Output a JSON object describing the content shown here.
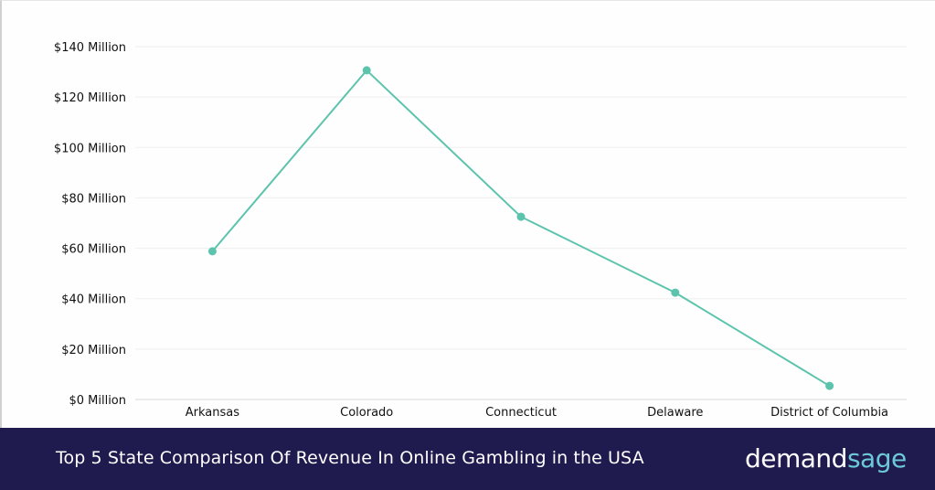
{
  "chart_data": {
    "type": "line",
    "title": "Top 5 State Comparison Of Revenue In Online Gambling in the USA",
    "categories": [
      "Arkansas",
      "Colorado",
      "Connecticut",
      "Delaware",
      "District of Columbia"
    ],
    "values": [
      58.8,
      130.6,
      72.5,
      42.4,
      5.4
    ],
    "y_unit": "Million USD",
    "ylim": [
      0,
      140
    ],
    "yticks": [
      0,
      20,
      40,
      60,
      80,
      100,
      120,
      140
    ],
    "ytick_labels": [
      "$0 Million",
      "$20 Million",
      "$40 Million",
      "$60 Million",
      "$80 Million",
      "$100 Million",
      "$120 Million",
      "$140 Million"
    ],
    "grid": true,
    "line_color": "#5cc4ad"
  },
  "footer": {
    "title": "Top 5 State Comparison Of Revenue In Online Gambling in the USA",
    "logo_a": "demand",
    "logo_b": "sage"
  },
  "colors": {
    "footer_bg": "#201b4f",
    "logo_accent": "#6cc9d6"
  }
}
